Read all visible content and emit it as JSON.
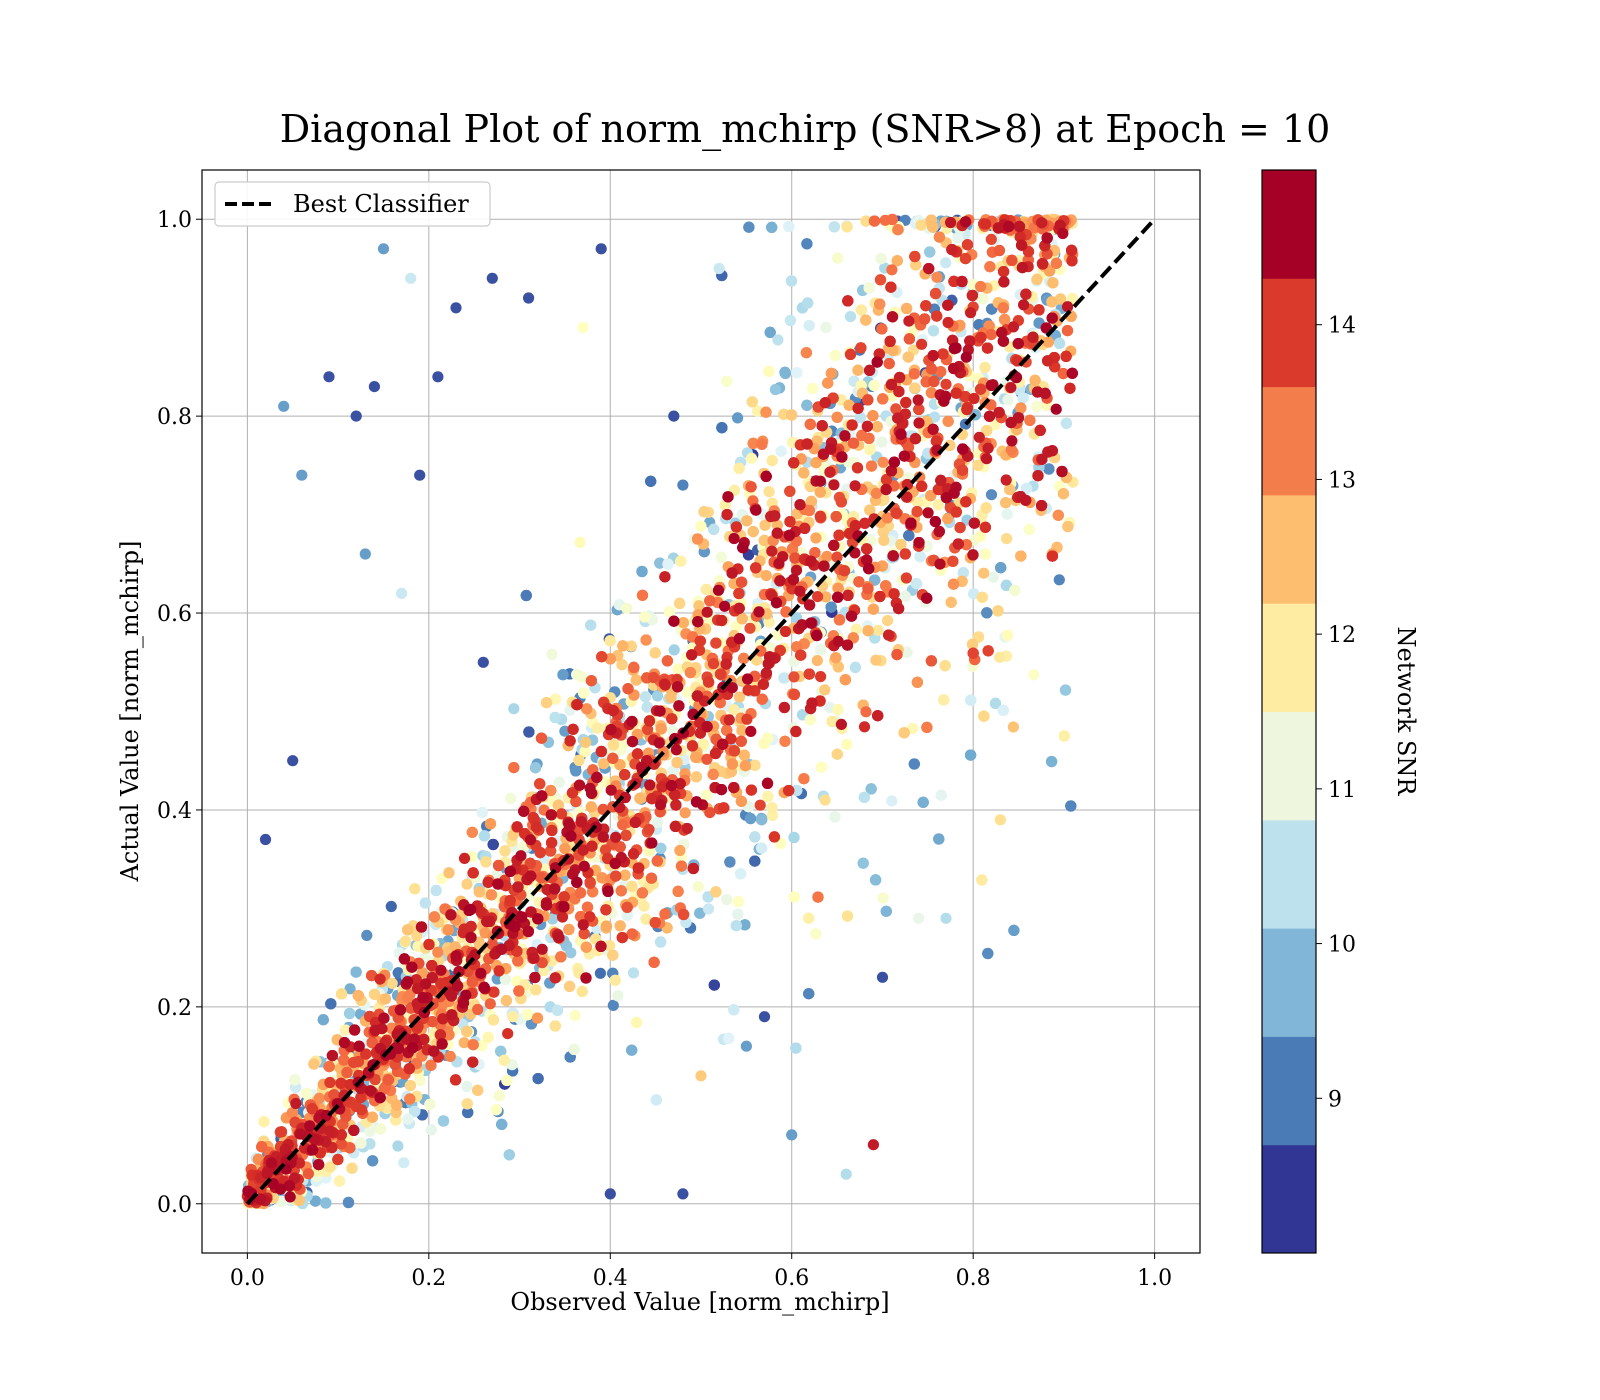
{
  "chart_data": {
    "type": "scatter",
    "title": "Diagonal Plot of norm_mchirp (SNR>8) at Epoch = 10",
    "xlabel": "Observed Value [norm_mchirp]",
    "ylabel": "Actual Value [norm_mchirp]",
    "xlim": [
      -0.05,
      1.05
    ],
    "ylim": [
      -0.05,
      1.05
    ],
    "xticks": [
      "0.0",
      "0.2",
      "0.4",
      "0.6",
      "0.8",
      "1.0"
    ],
    "yticks": [
      "0.0",
      "0.2",
      "0.4",
      "0.6",
      "0.8",
      "1.0"
    ],
    "grid": true,
    "legend": {
      "position": "top-left",
      "entries": [
        {
          "name": "Best Classifier",
          "style": "dashed",
          "color": "#000000"
        }
      ]
    },
    "reference_line": {
      "name": "Best Classifier",
      "x": [
        0.0,
        1.0
      ],
      "y": [
        0.0,
        1.0
      ]
    },
    "series": [
      {
        "name": "",
        "color_by": "Network SNR",
        "distribution": "dense band around y = x for x in [0, 0.91]; band widens with x; high-SNR points (red) concentrated near diagonal, low-SNR points (blue) scattered further away",
        "x": [
          0.15,
          0.18,
          0.23,
          0.27,
          0.31,
          0.39,
          0.09,
          0.12,
          0.04,
          0.06,
          0.19,
          0.21,
          0.13,
          0.14,
          0.05,
          0.02,
          0.17,
          0.26,
          0.35,
          0.47,
          0.52,
          0.55,
          0.57,
          0.6,
          0.66,
          0.7,
          0.74,
          0.77,
          0.83,
          0.69,
          0.48,
          0.5,
          0.4,
          0.37
        ],
        "y": [
          0.97,
          0.94,
          0.91,
          0.94,
          0.92,
          0.97,
          0.84,
          0.8,
          0.81,
          0.74,
          0.74,
          0.84,
          0.66,
          0.83,
          0.45,
          0.37,
          0.62,
          0.55,
          0.48,
          0.8,
          0.95,
          0.16,
          0.19,
          0.07,
          0.03,
          0.23,
          0.29,
          0.29,
          0.39,
          0.06,
          0.01,
          0.13,
          0.01,
          0.89
        ],
        "snr": [
          9.2,
          10.5,
          8.3,
          8.3,
          8.3,
          8.3,
          8.3,
          8.3,
          9.2,
          9.2,
          8.3,
          8.3,
          9.2,
          8.3,
          8.3,
          8.3,
          10.5,
          8.3,
          9.2,
          8.3,
          10.5,
          9.2,
          8.3,
          9.2,
          10.2,
          8.3,
          11.0,
          10.2,
          12.2,
          14.6,
          8.3,
          12.5,
          8.3,
          11.5
        ]
      }
    ],
    "colorbar": {
      "label": "Network SNR",
      "range": [
        8,
        15
      ],
      "ticks": [
        "9",
        "10",
        "11",
        "12",
        "13",
        "14"
      ],
      "colors": [
        "#313695",
        "#4575b4",
        "#74add1",
        "#abd9e9",
        "#e0f3f8",
        "#ffffbf",
        "#fee090",
        "#fdae61",
        "#f46d43",
        "#d73027",
        "#a50026"
      ],
      "bands": [
        "#313695",
        "#4a7bb7",
        "#82b6d8",
        "#bde2ed",
        "#eef7de",
        "#feeca3",
        "#fdbe6f",
        "#f47d4c",
        "#da3a2b",
        "#a50026"
      ]
    }
  }
}
